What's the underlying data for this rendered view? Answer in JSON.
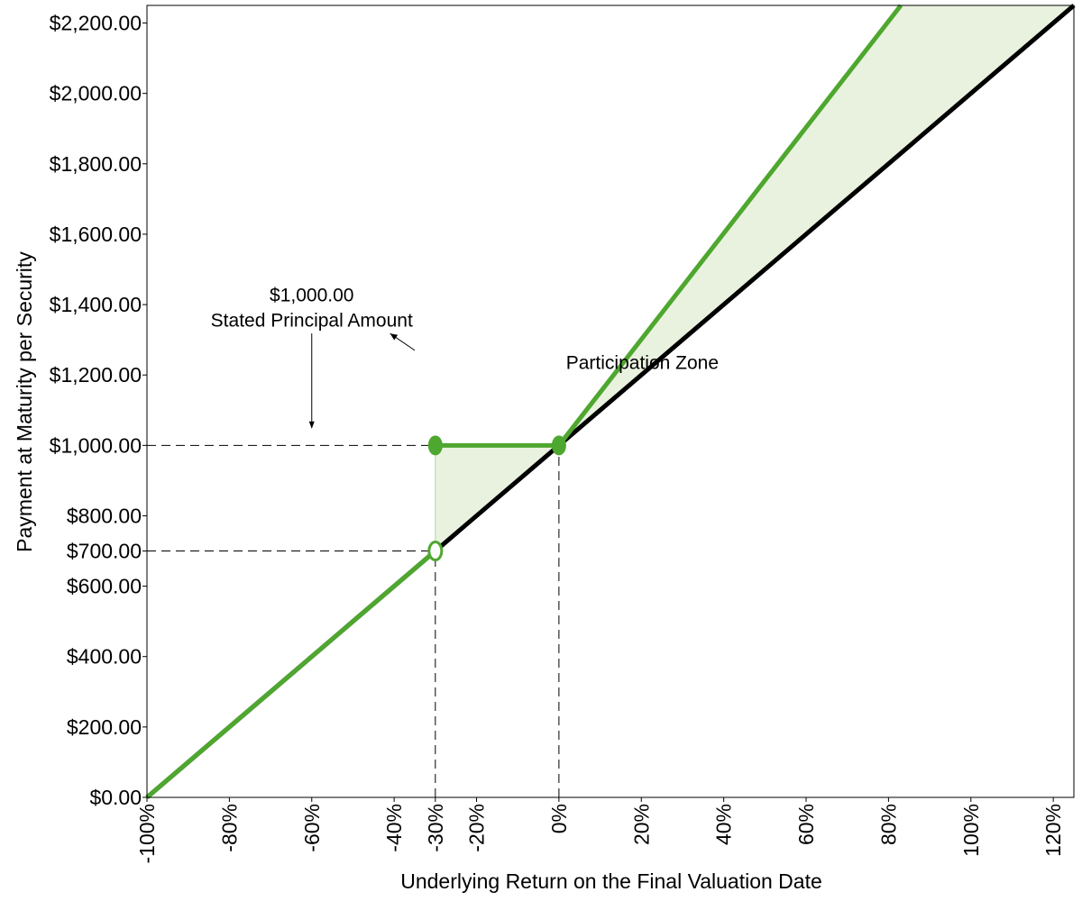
{
  "chart_data": {
    "type": "line",
    "title": "",
    "xlabel": "Underlying Return on the Final Valuation Date",
    "ylabel": "Payment at Maturity per Security",
    "xlim": [
      -100,
      125
    ],
    "ylim": [
      0,
      2250
    ],
    "x_ticks": [
      -100,
      -80,
      -60,
      -40,
      -30,
      -20,
      0,
      20,
      40,
      60,
      80,
      100,
      120
    ],
    "x_tick_labels": [
      "-100%",
      "-80%",
      "-60%",
      "-40%",
      "-30%",
      "-20%",
      "0%",
      "20%",
      "40%",
      "60%",
      "80%",
      "100%",
      "120%"
    ],
    "y_ticks": [
      0,
      200,
      400,
      600,
      700,
      800,
      1000,
      1200,
      1400,
      1600,
      1800,
      2000,
      2200
    ],
    "y_tick_labels": [
      "$0.00",
      "$200.00",
      "$400.00",
      "$600.00",
      "$700.00",
      "$800.00",
      "$1,000.00",
      "$1,200.00",
      "$1,400.00",
      "$1,600.00",
      "$1,800.00",
      "$2,000.00",
      "$2,200.00"
    ],
    "grid": false,
    "series": [
      {
        "color": "#000000",
        "points": [
          [
            -100,
            0
          ],
          [
            125,
            2250
          ]
        ]
      },
      {
        "color": "#4ea72e",
        "points": [
          [
            -100,
            0
          ],
          [
            -30,
            700
          ]
        ]
      },
      {
        "color": "#4ea72e",
        "points": [
          [
            -30,
            1000
          ],
          [
            0,
            1000
          ]
        ]
      },
      {
        "color": "#4ea72e",
        "points": [
          [
            0,
            1000
          ],
          [
            83,
            2250
          ]
        ]
      }
    ],
    "markers": [
      {
        "x": -30,
        "y": 1000,
        "filled": true,
        "color": "#4ea72e"
      },
      {
        "x": 0,
        "y": 1000,
        "filled": true,
        "color": "#4ea72e"
      },
      {
        "x": -30,
        "y": 700,
        "filled": false,
        "color": "#4ea72e"
      }
    ],
    "shaded_regions": [
      {
        "color": "#e9f2df",
        "points": [
          [
            -30,
            700
          ],
          [
            -30,
            1000
          ],
          [
            0,
            1000
          ]
        ]
      },
      {
        "color": "#e9f2df",
        "points": [
          [
            0,
            1000
          ],
          [
            83,
            2250
          ],
          [
            125,
            2250
          ]
        ]
      }
    ],
    "reference_lines": [
      {
        "from": [
          -100,
          1000
        ],
        "to": [
          -30,
          1000
        ]
      },
      {
        "from": [
          -100,
          700
        ],
        "to": [
          -30,
          700
        ]
      },
      {
        "from": [
          -30,
          0
        ],
        "to": [
          -30,
          700
        ]
      },
      {
        "from": [
          0,
          0
        ],
        "to": [
          0,
          1000
        ]
      }
    ],
    "annotations": [
      {
        "lines": [
          "$1,000.00",
          "Stated Principal Amount"
        ],
        "text_at": [
          -60,
          1358
        ],
        "arrow_from": [
          -60,
          1318
        ],
        "arrow_to": [
          -60,
          1050
        ]
      },
      {
        "lines": [
          "Participation Zone"
        ],
        "text_at": [
          -2,
          1235
        ],
        "arrow_from": [
          -35,
          1270
        ],
        "arrow_to": [
          -41,
          1318
        ]
      }
    ]
  }
}
